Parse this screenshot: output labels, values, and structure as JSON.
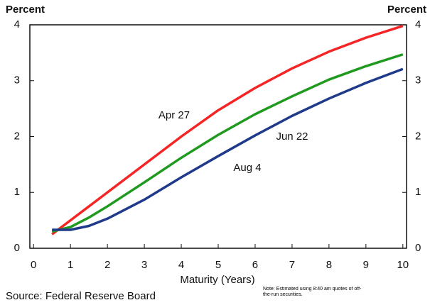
{
  "chart_data": {
    "type": "line",
    "y_label_left": "Percent",
    "y_label_right": "Percent",
    "x_label": "Maturity (Years)",
    "source": "Source: Federal Reserve Board",
    "note": "Note: Estimated using 8:40 am quotes of off-the-run securities.",
    "x": [
      0.5,
      1,
      1.5,
      2,
      3,
      4,
      5,
      6,
      7,
      8,
      9,
      10
    ],
    "series": [
      {
        "name": "Apr 27",
        "color": "#f52525",
        "values": [
          0.25,
          0.5,
          0.75,
          1.0,
          1.5,
          2.0,
          2.47,
          2.87,
          3.22,
          3.52,
          3.77,
          3.98
        ]
      },
      {
        "name": "Jun 22",
        "color": "#1f9a1f",
        "values": [
          0.3,
          0.38,
          0.55,
          0.75,
          1.18,
          1.62,
          2.03,
          2.4,
          2.72,
          3.02,
          3.26,
          3.47
        ]
      },
      {
        "name": "Aug 4",
        "color": "#1f3a8a",
        "values": [
          0.33,
          0.33,
          0.4,
          0.53,
          0.87,
          1.27,
          1.65,
          2.02,
          2.37,
          2.68,
          2.96,
          3.21
        ]
      }
    ],
    "xlim": [
      -0.1,
      10.1
    ],
    "xticks": [
      0,
      1,
      2,
      3,
      4,
      5,
      6,
      7,
      8,
      9,
      10
    ],
    "ylim": [
      0,
      4
    ],
    "yticks": [
      0,
      1,
      2,
      3,
      4
    ]
  }
}
